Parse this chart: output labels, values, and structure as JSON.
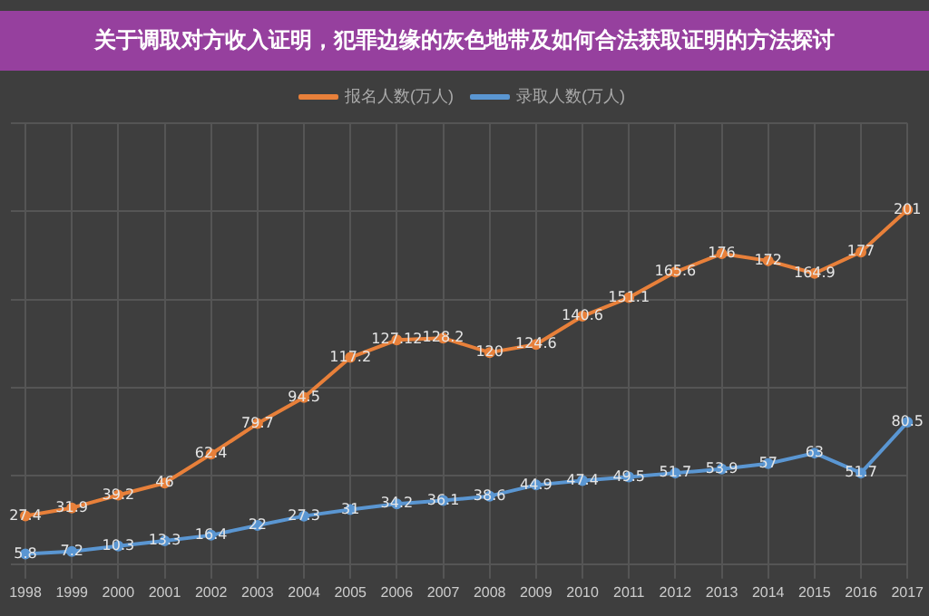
{
  "chart_data": {
    "type": "line",
    "title": "关于调取对方收入证明，犯罪边缘的灰色地带及如何合法获取证明的方法探讨",
    "categories": [
      "1998",
      "1999",
      "2000",
      "2001",
      "2002",
      "2003",
      "2004",
      "2005",
      "2006",
      "2007",
      "2008",
      "2009",
      "2010",
      "2011",
      "2012",
      "2013",
      "2014",
      "2015",
      "2016",
      "2017"
    ],
    "series": [
      {
        "name": "报名人数(万人)",
        "color": "#e8803a",
        "values": [
          27.4,
          31.9,
          39.2,
          46,
          62.4,
          79.7,
          94.5,
          117.2,
          127.12,
          128.2,
          120,
          124.6,
          140.6,
          151.1,
          165.6,
          176,
          172,
          164.9,
          177,
          201
        ]
      },
      {
        "name": "录取人数(万人)",
        "color": "#5a96d2",
        "values": [
          5.8,
          7.2,
          10.3,
          13.3,
          16.4,
          22,
          27.3,
          31,
          34.2,
          36.1,
          38.6,
          44.9,
          47.4,
          49.5,
          51.7,
          53.9,
          57,
          63,
          51.7,
          80.5
        ]
      }
    ],
    "data_labels": true,
    "legend": "top",
    "grid": true,
    "tick_labels": "x",
    "marker": "circle"
  }
}
